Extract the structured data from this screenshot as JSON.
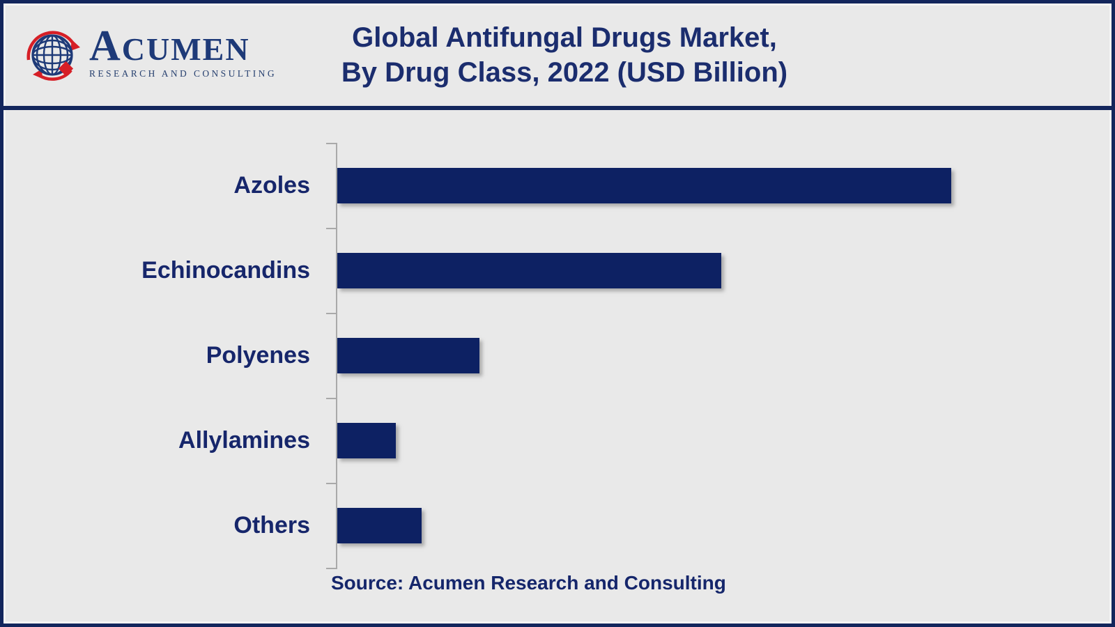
{
  "header": {
    "logo": {
      "brand": "ACUMEN",
      "tagline": "RESEARCH AND CONSULTING",
      "icon": "globe-with-orbit-arrows-and-diamond"
    },
    "title_line1": "Global Antifungal Drugs Market,",
    "title_line2": "By Drug Class, 2022 (USD Billion)"
  },
  "chart_data": {
    "type": "bar",
    "orientation": "horizontal",
    "title": "Global Antifungal Drugs Market, By Drug Class, 2022 (USD Billion)",
    "unit": "USD Billion",
    "categories": [
      "Azoles",
      "Echinocandins",
      "Polyenes",
      "Allylamines",
      "Others"
    ],
    "values": [
      8.0,
      5.0,
      1.85,
      0.76,
      1.1
    ],
    "values_estimated_from_bar_lengths": true,
    "value_labels_shown": false,
    "axis_numeric_labels_shown": false,
    "xlim": [
      0,
      9.6
    ],
    "grid": false,
    "legend": false,
    "bar_color": "#0d2163",
    "axis_color": "#a9a9a9"
  },
  "footer": {
    "source_text": "Source: Acumen Research and Consulting"
  },
  "colors": {
    "background": "#e9e9e9",
    "frame_border": "#13265c",
    "title_text": "#1b2d6e",
    "category_label_text": "#16266b",
    "brand_navy": "#1e3a78",
    "brand_red": "#d61f26"
  }
}
